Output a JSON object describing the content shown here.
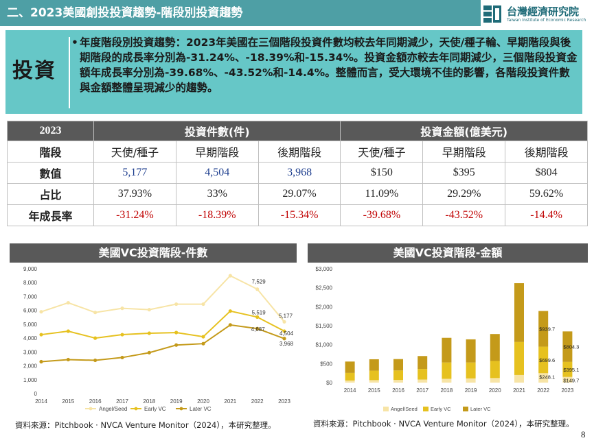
{
  "header": {
    "title": "二、2023美國創投投資趨勢-階段別投資趨勢",
    "logo_name": "台灣經濟研究院",
    "logo_sub": "Taiwan Institute of Economic Research"
  },
  "invest": {
    "label": "投資",
    "bullet": "•",
    "text": "年度階段別投資趨勢：2023年美國在三個階段投資件數均較去年同期減少，天使/種子輪、早期階段與後期階段的成長率分別為-31.24%、-18.39%和-15.34%。投資金額亦較去年同期減少，三個階段投資金額年成長率分別為-39.68%、-43.52%和-14.4%。整體而言，受大環境不佳的影響，各階段投資件數與金額整體呈現減少的趨勢。"
  },
  "table": {
    "year": "2023",
    "group_count": "投資件數(件)",
    "group_amount": "投資金額(億美元)",
    "row_headers": [
      "階段",
      "數值",
      "占比",
      "年成長率"
    ],
    "stages": [
      "天使/種子",
      "早期階段",
      "後期階段",
      "天使/種子",
      "早期階段",
      "後期階段"
    ],
    "values": [
      "5,177",
      "4,504",
      "3,968",
      "$150",
      "$395",
      "$804"
    ],
    "shares": [
      "37.93%",
      "33%",
      "29.07%",
      "11.09%",
      "29.29%",
      "59.62%"
    ],
    "growth": [
      "-31.24%",
      "-18.39%",
      "-15.34%",
      "-39.68%",
      "-43.52%",
      "-14.4%"
    ]
  },
  "chart_left": {
    "title": "美國VC投資階段-件數",
    "source": "資料來源：Pitchbook · NVCA Venture Monitor（2024），本研究整理。"
  },
  "chart_right": {
    "title": "美國VC投資階段-金額",
    "source": "資料來源：Pitchbook · NVCA Venture Monitor（2024），本研究整理。"
  },
  "page_number": "8",
  "colors": {
    "angel": "#f7e4a6",
    "early": "#e6c11f",
    "later": "#c49a1a",
    "header": "#4e9fa5",
    "box": "#66c7c7"
  },
  "chart_data": [
    {
      "type": "line",
      "x": [
        "2014",
        "2015",
        "2016",
        "2017",
        "2018",
        "2019",
        "2020",
        "2021",
        "2022",
        "2023"
      ],
      "ylim": [
        0,
        9000
      ],
      "yticks": [
        "0",
        "1,000",
        "2,000",
        "3,000",
        "4,000",
        "5,000",
        "6,000",
        "7,000",
        "8,000",
        "9,000"
      ],
      "series": [
        {
          "name": "Angel/Seed",
          "values": [
            5900,
            6550,
            5850,
            6150,
            6050,
            6450,
            6450,
            8500,
            7529,
            5177
          ]
        },
        {
          "name": "Early VC",
          "values": [
            4250,
            4500,
            4000,
            4250,
            4350,
            4400,
            4100,
            5950,
            5519,
            4504
          ]
        },
        {
          "name": "Later VC",
          "values": [
            2300,
            2450,
            2400,
            2600,
            2950,
            3500,
            3600,
            4950,
            4687,
            3968
          ]
        }
      ],
      "data_labels": [
        {
          "series": "Angel/Seed",
          "x": "2022",
          "text": "7,529"
        },
        {
          "series": "Angel/Seed",
          "x": "2023",
          "text": "5,177"
        },
        {
          "series": "Early VC",
          "x": "2022",
          "text": "5,519"
        },
        {
          "series": "Early VC",
          "x": "2023",
          "text": "4,504"
        },
        {
          "series": "Later VC",
          "x": "2022",
          "text": "4,687"
        },
        {
          "series": "Later VC",
          "x": "2023",
          "text": "3,968"
        }
      ],
      "legend": "bottom"
    },
    {
      "type": "bar",
      "stacked": true,
      "categories": [
        "2014",
        "2015",
        "2016",
        "2017",
        "2018",
        "2019",
        "2020",
        "2021",
        "2022",
        "2023"
      ],
      "ylim": [
        0,
        3000
      ],
      "yticks": [
        "$0",
        "$500",
        "$1,000",
        "$1,500",
        "$2,000",
        "$2,500",
        "$3,000"
      ],
      "series": [
        {
          "name": "Angel/Seed",
          "values": [
            55,
            65,
            70,
            80,
            100,
            110,
            120,
            200,
            248.1,
            149.7
          ]
        },
        {
          "name": "Early VC",
          "values": [
            200,
            250,
            250,
            280,
            430,
            420,
            450,
            870,
            699.6,
            395.1
          ]
        },
        {
          "name": "Later VC",
          "values": [
            300,
            300,
            300,
            340,
            650,
            610,
            710,
            1550,
            939.7,
            804.3
          ]
        }
      ],
      "data_labels": [
        {
          "series": "Later VC",
          "x": "2022",
          "text": "$939.7"
        },
        {
          "series": "Later VC",
          "x": "2023",
          "text": "$804.3"
        },
        {
          "series": "Early VC",
          "x": "2022",
          "text": "$699.6"
        },
        {
          "series": "Early VC",
          "x": "2023",
          "text": "$395.1"
        },
        {
          "series": "Angel/Seed",
          "x": "2022",
          "text": "$248.1"
        },
        {
          "series": "Angel/Seed",
          "x": "2023",
          "text": "$149.7"
        }
      ],
      "legend": "bottom"
    }
  ]
}
